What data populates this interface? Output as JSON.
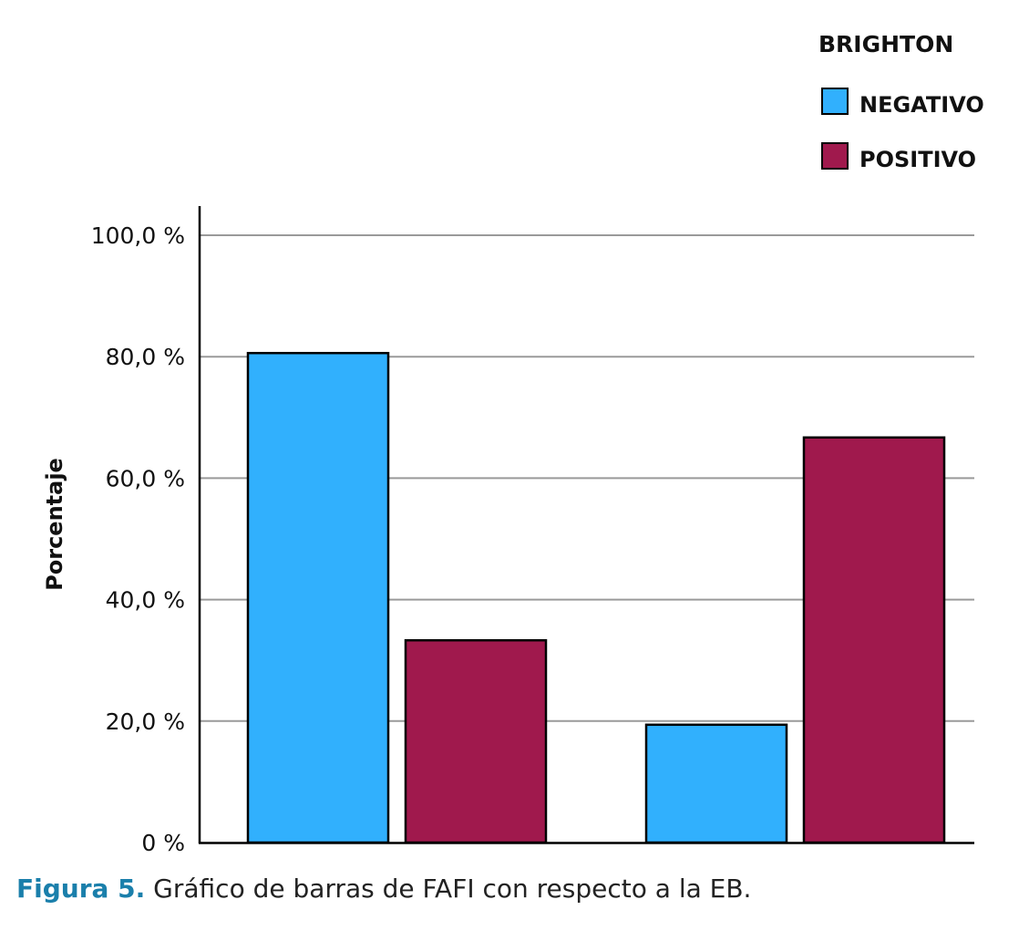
{
  "chart_data": {
    "type": "bar",
    "title": "",
    "xlabel": "",
    "ylabel": "Porcentaje",
    "ylim": [
      0,
      100
    ],
    "yticks": [
      "0 %",
      "20,0 %",
      "40,0 %",
      "60,0 %",
      "80,0 %",
      "100,0 %"
    ],
    "ytick_values": [
      0,
      20,
      40,
      60,
      80,
      100
    ],
    "grid": true,
    "legend": {
      "title": "BRIGHTON",
      "placement": "top-right"
    },
    "groups": 2,
    "series": [
      {
        "name": "NEGATIVO",
        "color": "#31b0fd",
        "values": [
          80.6,
          19.4
        ]
      },
      {
        "name": "POSITIVO",
        "color": "#a0194d",
        "values": [
          33.3,
          66.7
        ]
      }
    ]
  },
  "caption": {
    "label": "Figura 5.",
    "text": " Gráfico de barras de FAFI con respecto a la EB."
  }
}
